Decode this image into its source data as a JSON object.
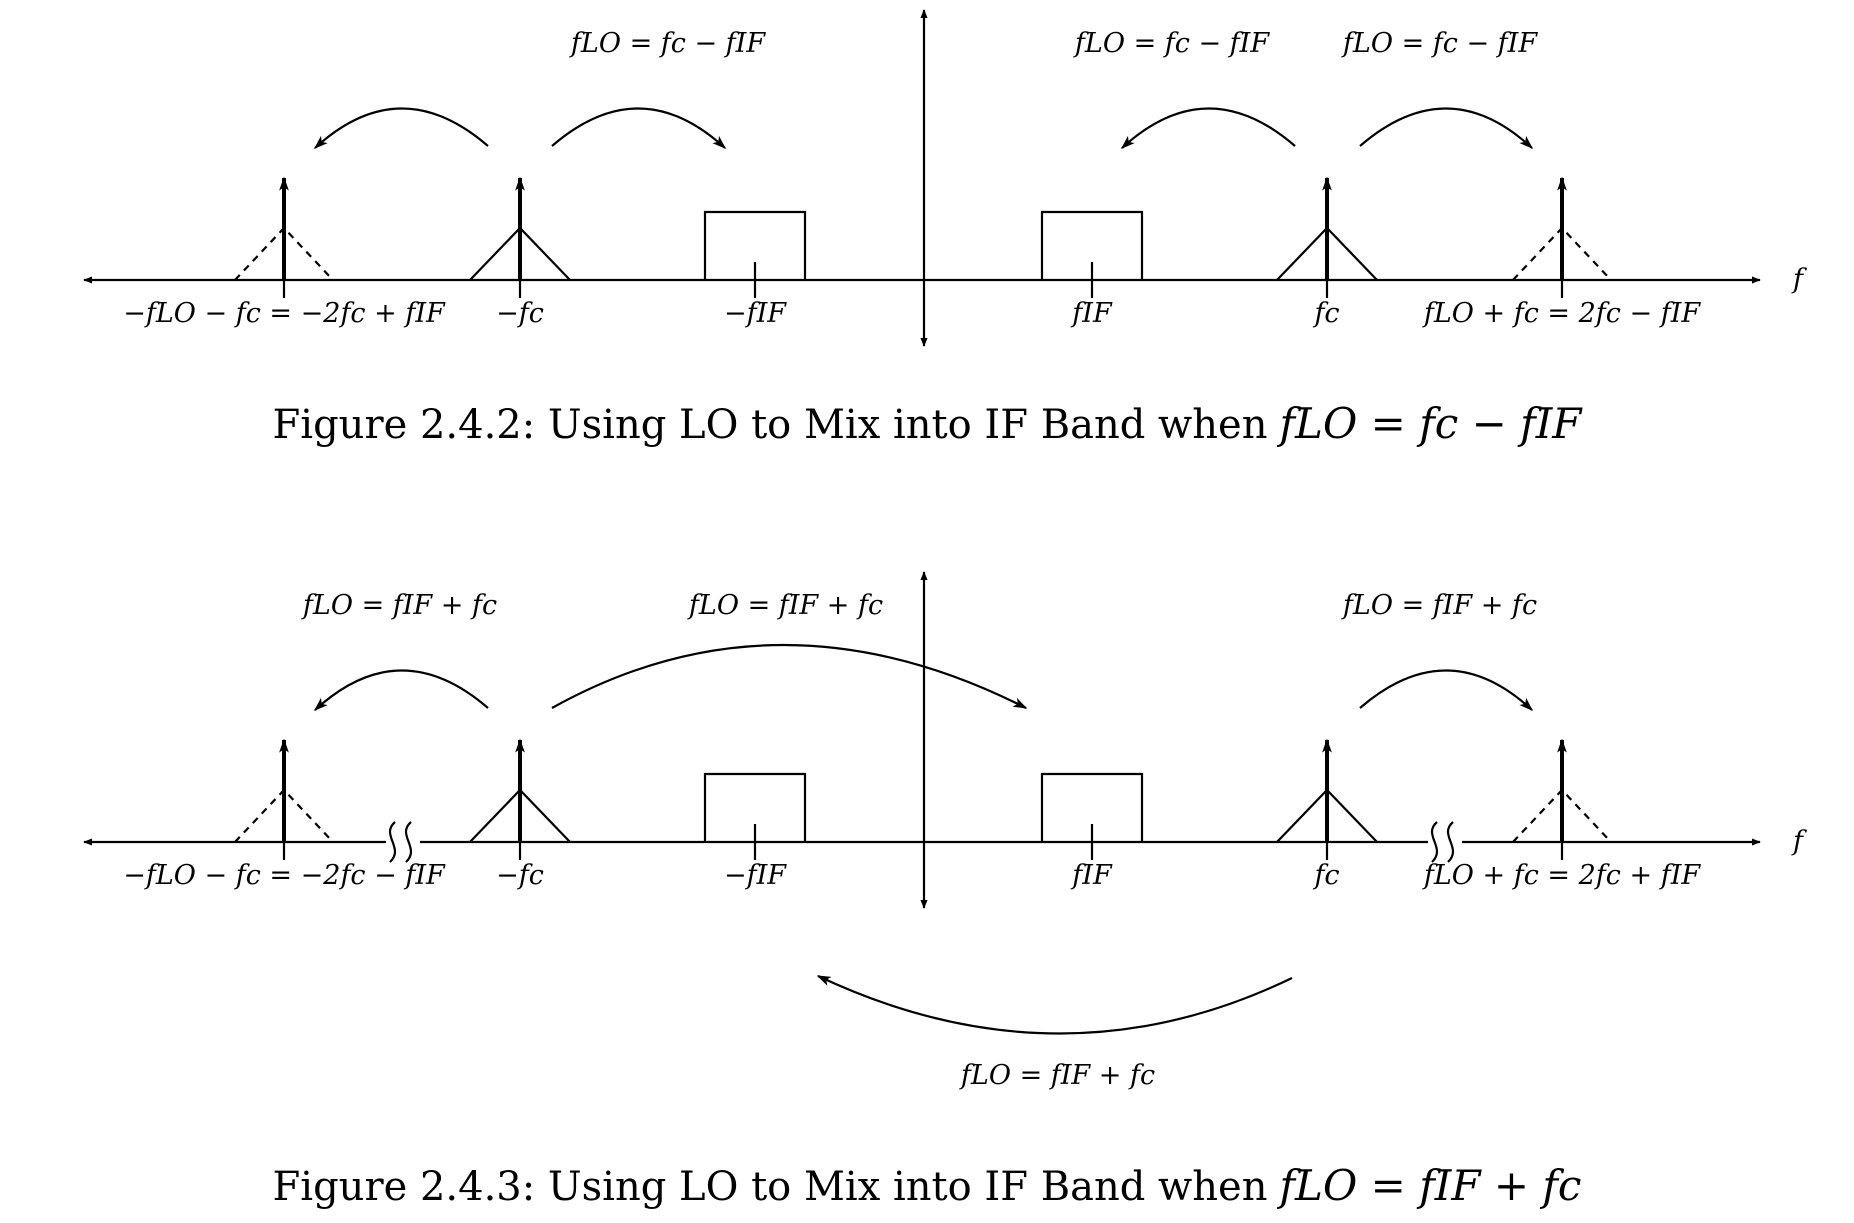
{
  "figure1": {
    "axis_label": "f",
    "ticks": {
      "neg_lo_minus_fc": "−fLO − fc = −2fc + fIF",
      "neg_fc": "−fc",
      "neg_fif": "−fIF",
      "fif": "fIF",
      "fc": "fc",
      "lo_plus_fc": "fLO + fc = 2fc − fIF"
    },
    "arrow_labels": {
      "left": "fLO = fc − fIF",
      "right_a": "fLO = fc − fIF",
      "right_b": "fLO = fc − fIF"
    },
    "caption_text": "Figure 2.4.2: Using LO to Mix into IF Band when",
    "caption_math": "fLO = fc − fIF"
  },
  "figure2": {
    "axis_label": "f",
    "ticks": {
      "neg_lo_minus_fc": "−fLO − fc = −2fc − fIF",
      "neg_fc": "−fc",
      "neg_fif": "−fIF",
      "fif": "fIF",
      "fc": "fc",
      "lo_plus_fc": "fLO + fc = 2fc + fIF"
    },
    "arrow_labels": {
      "left": "fLO = fIF + fc",
      "middle": "fLO = fIF + fc",
      "right": "fLO = fIF + fc",
      "bottom": "fLO = fIF + fc"
    },
    "caption_text": "Figure 2.4.3: Using LO to Mix into IF Band when",
    "caption_math": "fLO = fIF + fc"
  }
}
